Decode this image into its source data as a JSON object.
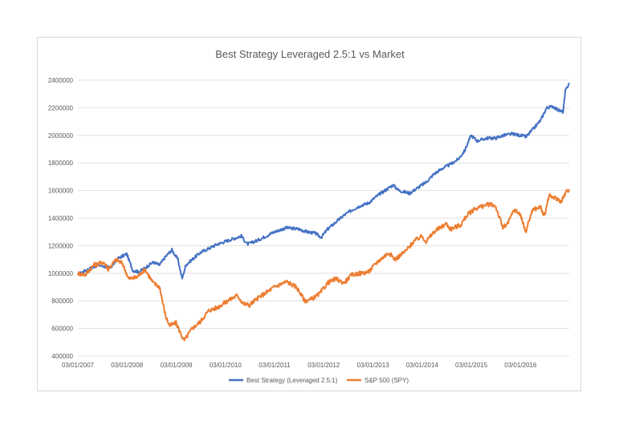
{
  "chart_data": {
    "type": "line",
    "title": "Best Strategy Leveraged 2.5:1 vs Market",
    "xlabel": "",
    "ylabel": "",
    "x_tick_labels": [
      "03/01/2007",
      "03/01/2008",
      "03/01/2009",
      "03/01/2010",
      "03/01/2011",
      "03/01/2012",
      "03/01/2013",
      "03/01/2014",
      "03/01/2015",
      "03/01/2016"
    ],
    "y_tick_labels": [
      "400000",
      "600000",
      "800000",
      "1000000",
      "1200000",
      "1400000",
      "1600000",
      "1800000",
      "2000000",
      "2200000",
      "2400000"
    ],
    "ylim": [
      400000,
      2400000
    ],
    "xlim": [
      "2007-01-03",
      "2016-12-30"
    ],
    "grid": "horizontal",
    "legend_position": "bottom",
    "series": [
      {
        "name": "Best Strategy (Leveraged 2.5:1)",
        "color": "#4472c4",
        "points": [
          [
            "2007-01-03",
            990000
          ],
          [
            "2007-03-01",
            1020000
          ],
          [
            "2007-06-01",
            1060000
          ],
          [
            "2007-09-01",
            1040000
          ],
          [
            "2007-11-01",
            1110000
          ],
          [
            "2008-01-01",
            1140000
          ],
          [
            "2008-02-15",
            1020000
          ],
          [
            "2008-04-01",
            1010000
          ],
          [
            "2008-06-01",
            1050000
          ],
          [
            "2008-07-15",
            1080000
          ],
          [
            "2008-09-01",
            1060000
          ],
          [
            "2008-10-15",
            1120000
          ],
          [
            "2008-12-01",
            1170000
          ],
          [
            "2009-01-15",
            1100000
          ],
          [
            "2009-02-15",
            960000
          ],
          [
            "2009-03-15",
            1060000
          ],
          [
            "2009-05-01",
            1100000
          ],
          [
            "2009-07-01",
            1150000
          ],
          [
            "2009-09-01",
            1180000
          ],
          [
            "2009-11-01",
            1210000
          ],
          [
            "2010-01-01",
            1230000
          ],
          [
            "2010-03-01",
            1250000
          ],
          [
            "2010-05-01",
            1270000
          ],
          [
            "2010-06-15",
            1210000
          ],
          [
            "2010-09-01",
            1240000
          ],
          [
            "2010-11-01",
            1270000
          ],
          [
            "2011-01-01",
            1300000
          ],
          [
            "2011-04-01",
            1330000
          ],
          [
            "2011-07-01",
            1320000
          ],
          [
            "2011-09-01",
            1300000
          ],
          [
            "2011-11-01",
            1290000
          ],
          [
            "2011-12-15",
            1260000
          ],
          [
            "2012-02-01",
            1320000
          ],
          [
            "2012-04-01",
            1370000
          ],
          [
            "2012-06-01",
            1420000
          ],
          [
            "2012-08-01",
            1460000
          ],
          [
            "2012-10-01",
            1490000
          ],
          [
            "2012-12-01",
            1510000
          ],
          [
            "2013-02-01",
            1560000
          ],
          [
            "2013-04-01",
            1600000
          ],
          [
            "2013-06-01",
            1640000
          ],
          [
            "2013-07-15",
            1600000
          ],
          [
            "2013-10-01",
            1580000
          ],
          [
            "2013-12-01",
            1620000
          ],
          [
            "2014-02-01",
            1660000
          ],
          [
            "2014-04-01",
            1720000
          ],
          [
            "2014-06-01",
            1760000
          ],
          [
            "2014-08-01",
            1790000
          ],
          [
            "2014-10-01",
            1830000
          ],
          [
            "2014-11-15",
            1890000
          ],
          [
            "2015-01-01",
            2000000
          ],
          [
            "2015-02-15",
            1960000
          ],
          [
            "2015-05-01",
            1980000
          ],
          [
            "2015-07-01",
            1980000
          ],
          [
            "2015-09-01",
            2000000
          ],
          [
            "2015-11-01",
            2010000
          ],
          [
            "2016-01-01",
            2000000
          ],
          [
            "2016-02-15",
            1990000
          ],
          [
            "2016-04-01",
            2040000
          ],
          [
            "2016-06-01",
            2110000
          ],
          [
            "2016-07-15",
            2200000
          ],
          [
            "2016-09-01",
            2210000
          ],
          [
            "2016-10-15",
            2180000
          ],
          [
            "2016-11-15",
            2170000
          ],
          [
            "2016-12-01",
            2320000
          ],
          [
            "2016-12-30",
            2380000
          ]
        ]
      },
      {
        "name": "S&P 500 (SPY)",
        "color": "#ed7d31",
        "points": [
          [
            "2007-01-03",
            1000000
          ],
          [
            "2007-03-01",
            990000
          ],
          [
            "2007-05-01",
            1060000
          ],
          [
            "2007-07-15",
            1080000
          ],
          [
            "2007-08-15",
            1030000
          ],
          [
            "2007-10-15",
            1100000
          ],
          [
            "2007-12-01",
            1070000
          ],
          [
            "2008-01-15",
            960000
          ],
          [
            "2008-03-15",
            970000
          ],
          [
            "2008-05-15",
            1030000
          ],
          [
            "2008-07-15",
            930000
          ],
          [
            "2008-09-01",
            900000
          ],
          [
            "2008-10-15",
            690000
          ],
          [
            "2008-11-15",
            620000
          ],
          [
            "2009-01-01",
            640000
          ],
          [
            "2009-03-01",
            510000
          ],
          [
            "2009-05-01",
            600000
          ],
          [
            "2009-07-01",
            650000
          ],
          [
            "2009-09-01",
            730000
          ],
          [
            "2009-11-01",
            750000
          ],
          [
            "2010-01-01",
            790000
          ],
          [
            "2010-04-01",
            840000
          ],
          [
            "2010-05-15",
            780000
          ],
          [
            "2010-07-01",
            770000
          ],
          [
            "2010-09-01",
            820000
          ],
          [
            "2010-11-01",
            860000
          ],
          [
            "2011-01-01",
            900000
          ],
          [
            "2011-04-01",
            940000
          ],
          [
            "2011-06-15",
            900000
          ],
          [
            "2011-08-15",
            800000
          ],
          [
            "2011-10-01",
            810000
          ],
          [
            "2011-12-01",
            850000
          ],
          [
            "2012-02-01",
            930000
          ],
          [
            "2012-04-01",
            960000
          ],
          [
            "2012-06-01",
            930000
          ],
          [
            "2012-08-01",
            990000
          ],
          [
            "2012-10-01",
            1000000
          ],
          [
            "2012-12-01",
            1010000
          ],
          [
            "2013-02-01",
            1080000
          ],
          [
            "2013-05-01",
            1150000
          ],
          [
            "2013-06-15",
            1100000
          ],
          [
            "2013-09-01",
            1160000
          ],
          [
            "2013-11-01",
            1230000
          ],
          [
            "2014-01-01",
            1270000
          ],
          [
            "2014-02-01",
            1230000
          ],
          [
            "2014-04-01",
            1300000
          ],
          [
            "2014-07-01",
            1360000
          ],
          [
            "2014-08-01",
            1320000
          ],
          [
            "2014-10-15",
            1350000
          ],
          [
            "2014-12-01",
            1420000
          ],
          [
            "2015-02-01",
            1470000
          ],
          [
            "2015-05-15",
            1500000
          ],
          [
            "2015-07-01",
            1490000
          ],
          [
            "2015-08-25",
            1330000
          ],
          [
            "2015-10-01",
            1360000
          ],
          [
            "2015-11-15",
            1460000
          ],
          [
            "2016-01-01",
            1430000
          ],
          [
            "2016-02-10",
            1300000
          ],
          [
            "2016-04-01",
            1460000
          ],
          [
            "2016-06-01",
            1480000
          ],
          [
            "2016-06-28",
            1410000
          ],
          [
            "2016-08-01",
            1560000
          ],
          [
            "2016-10-01",
            1540000
          ],
          [
            "2016-11-01",
            1520000
          ],
          [
            "2016-12-01",
            1580000
          ],
          [
            "2016-12-30",
            1610000
          ]
        ]
      }
    ]
  }
}
